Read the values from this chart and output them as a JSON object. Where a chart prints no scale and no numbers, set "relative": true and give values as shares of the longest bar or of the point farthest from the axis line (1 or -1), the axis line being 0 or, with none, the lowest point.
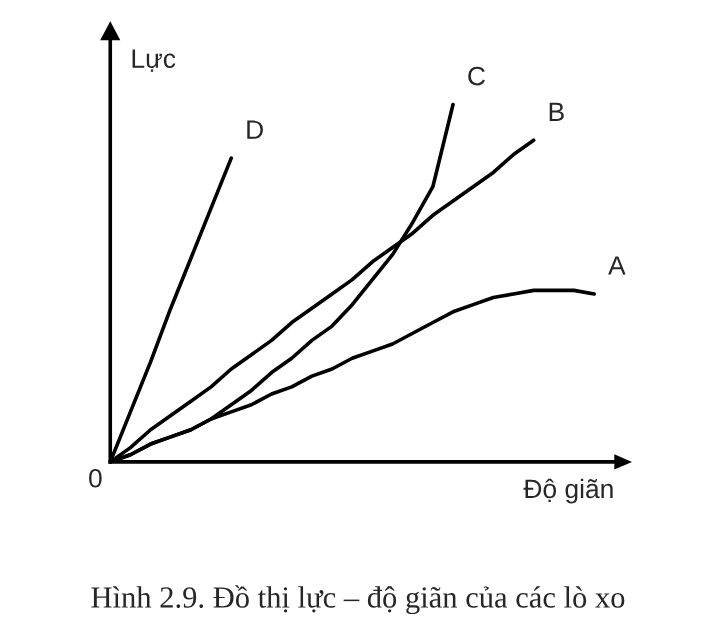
{
  "chart_data": {
    "type": "line",
    "relative": true,
    "title": "Hình 2.9. Đồ thị lực – độ giãn của các lò xo",
    "xlabel": "Độ giãn",
    "ylabel": "Lực",
    "annotations": [
      "0"
    ],
    "legend": false,
    "marker": "none",
    "line_style": "solid",
    "categories": [
      null,
      null,
      null,
      null,
      null,
      null,
      null,
      null,
      null,
      null,
      null,
      null,
      null,
      null,
      null,
      null,
      null,
      null,
      null,
      null,
      null,
      null,
      null,
      null,
      null,
      null
    ],
    "series": [
      {
        "name": "A",
        "color": "#000000",
        "values": [
          0,
          0.02,
          0.05,
          0.07,
          0.09,
          0.12,
          0.14,
          0.16,
          0.19,
          0.21,
          0.24,
          0.26,
          0.29,
          0.31,
          0.33,
          0.36,
          0.39,
          0.42,
          0.44,
          0.46,
          0.47,
          0.48,
          0.48,
          0.48,
          0.47,
          null
        ]
      },
      {
        "name": "B",
        "color": "#000000",
        "values": [
          0,
          0.04,
          0.09,
          0.13,
          0.17,
          0.21,
          0.26,
          0.3,
          0.34,
          0.39,
          0.43,
          0.47,
          0.51,
          0.56,
          0.6,
          0.64,
          0.69,
          0.73,
          0.77,
          0.81,
          0.86,
          0.9,
          null,
          null,
          null,
          null
        ]
      },
      {
        "name": "C",
        "color": "#000000",
        "values": [
          0,
          0.02,
          0.05,
          0.07,
          0.09,
          0.12,
          0.16,
          0.2,
          0.25,
          0.29,
          0.34,
          0.38,
          0.44,
          0.51,
          0.58,
          0.67,
          0.77,
          1.0,
          null,
          null,
          null,
          null,
          null,
          null,
          null,
          null
        ]
      },
      {
        "name": "D",
        "color": "#000000",
        "values": [
          0,
          0.14,
          0.28,
          0.43,
          0.57,
          0.71,
          0.85,
          null,
          null,
          null,
          null,
          null,
          null,
          null,
          null,
          null,
          null,
          null,
          null,
          null,
          null,
          null,
          null,
          null,
          null,
          null
        ]
      }
    ]
  }
}
